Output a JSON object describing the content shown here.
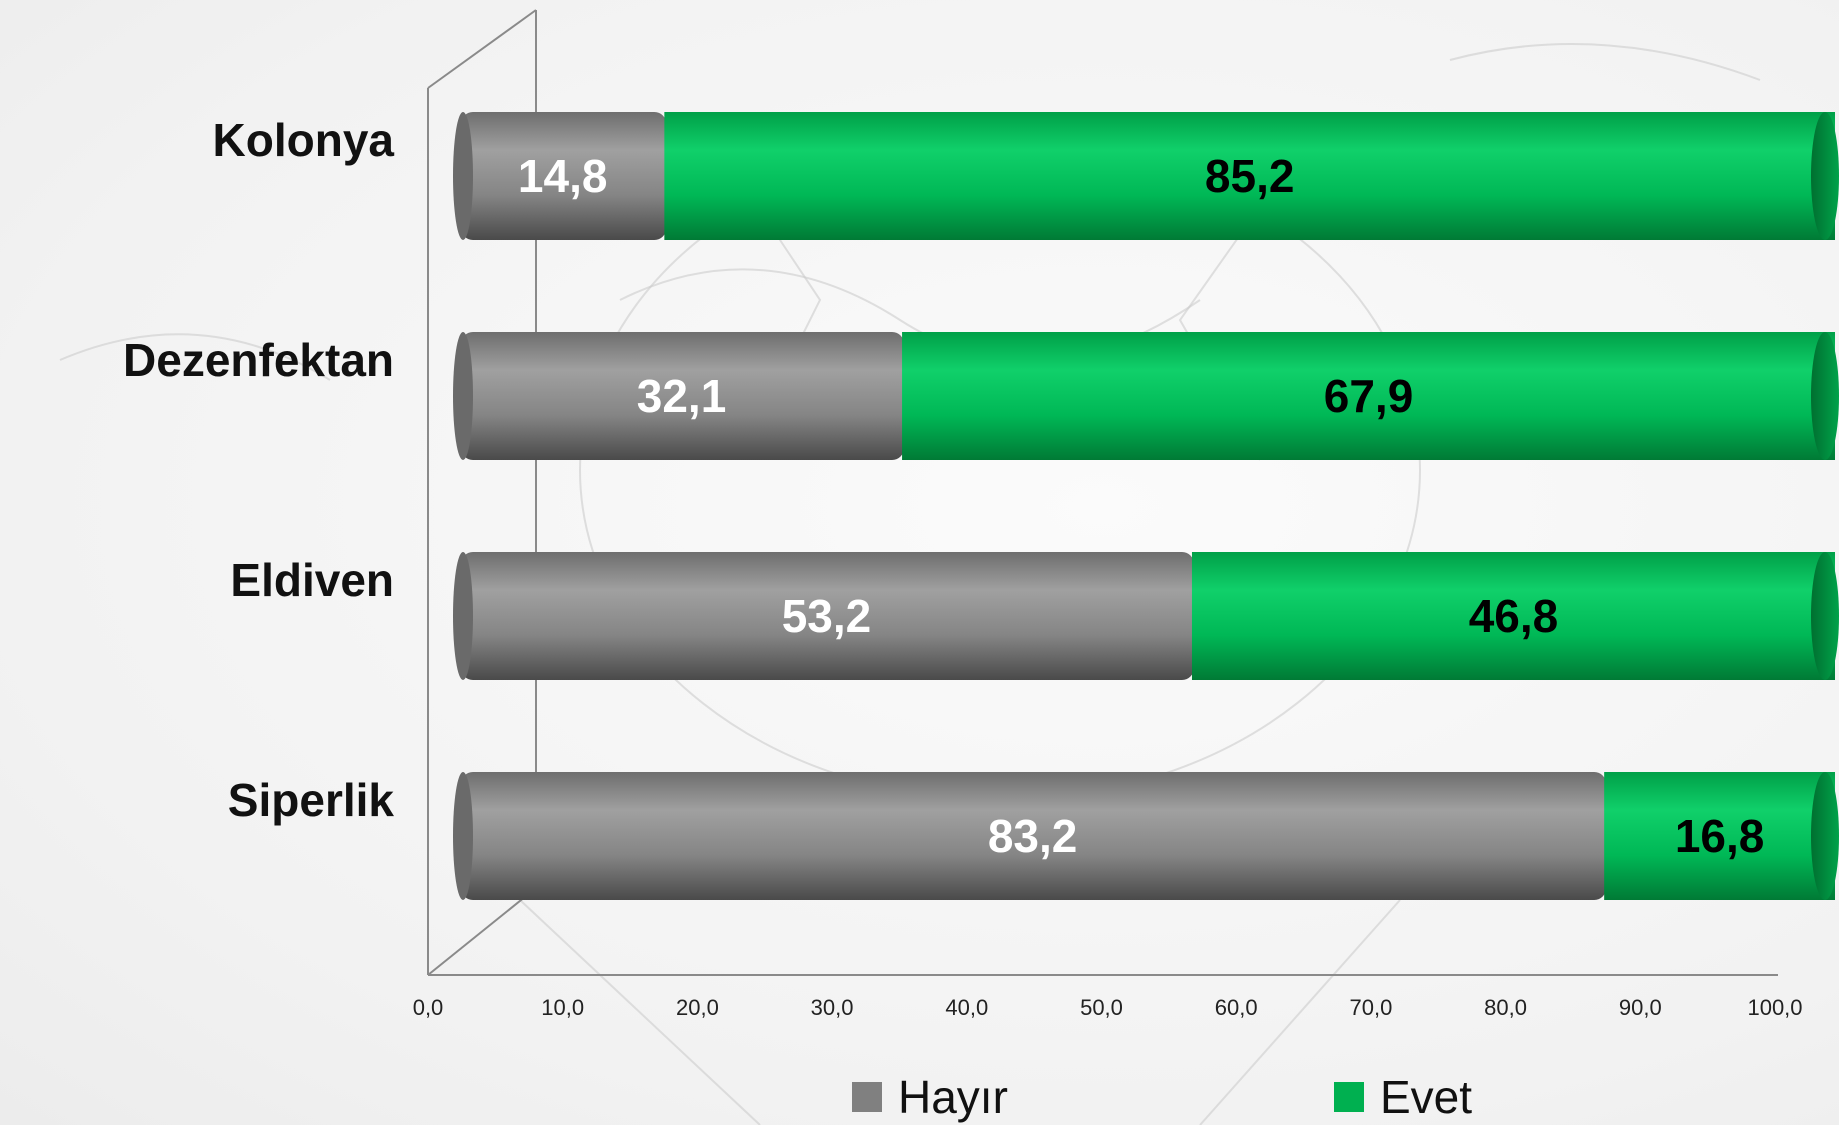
{
  "chart_data": {
    "type": "bar",
    "orientation": "horizontal",
    "stacked": true,
    "categories": [
      "Kolonya",
      "Dezenfektan",
      "Eldiven",
      "Siperlik"
    ],
    "series": [
      {
        "name": "Hayır",
        "values": [
          14.8,
          32.1,
          53.2,
          83.2
        ],
        "labels": [
          "14,8",
          "32,1",
          "53,2",
          "83,2"
        ],
        "color": "#8c8c8c"
      },
      {
        "name": "Evet",
        "values": [
          85.2,
          67.9,
          46.8,
          16.8
        ],
        "labels": [
          "85,2",
          "67,9",
          "46,8",
          "16,8"
        ],
        "color": "#00b050"
      }
    ],
    "xlim": [
      0,
      100
    ],
    "x_ticks": [
      "0,0",
      "10,0",
      "20,0",
      "30,0",
      "40,0",
      "50,0",
      "60,0",
      "70,0",
      "80,0",
      "90,0",
      "100,0"
    ],
    "legend_position": "bottom",
    "grid": false,
    "title": "",
    "xlabel": "",
    "ylabel": ""
  }
}
